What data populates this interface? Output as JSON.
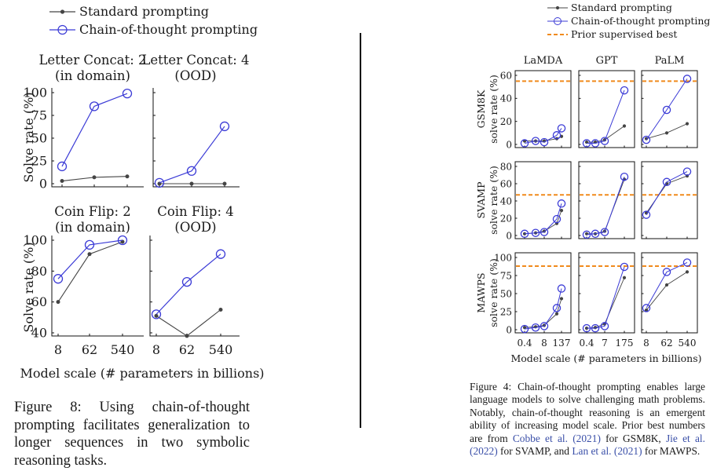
{
  "colors": {
    "standard": "#444444",
    "cot": "#3b3bd6",
    "prior": "#f08a1c"
  },
  "left_figure": {
    "legend": [
      {
        "key": "standard",
        "label": "Standard prompting"
      },
      {
        "key": "cot",
        "label": "Chain-of-thought prompting"
      }
    ],
    "ylabel": "Solve rate (%)",
    "xlabel": "Model scale (# parameters in billions)",
    "caption": {
      "label": "Figure 8:",
      "text": "Using chain-of-thought prompting facilitates generalization to longer sequences in two symbolic reasoning tasks."
    }
  },
  "right_figure": {
    "legend": [
      {
        "key": "standard",
        "label": "Standard prompting"
      },
      {
        "key": "cot",
        "label": "Chain-of-thought prompting"
      },
      {
        "key": "prior",
        "label": "Prior supervised best"
      }
    ],
    "column_titles": [
      "LaMDA",
      "GPT",
      "PaLM"
    ],
    "row_labels": [
      {
        "name": "GSM8K",
        "sub": "solve rate (%)"
      },
      {
        "name": "SVAMP",
        "sub": "solve rate (%)"
      },
      {
        "name": "MAWPS",
        "sub": "solve rate (%)"
      }
    ],
    "xlabel": "Model scale (# parameters in billions)",
    "caption": {
      "label": "Figure 4:",
      "text_1": "Chain-of-thought prompting enables large language models to solve challenging math problems. Notably, chain-of-thought reasoning is an emergent ability of increasing model scale. Prior best numbers are from ",
      "cite_1": "Cobbe et al. (2021)",
      "text_2": " for GSM8K, ",
      "cite_2": "Jie et al. (2022)",
      "text_3": " for SVAMP, and ",
      "cite_3": "Lan et al. (2021)",
      "text_4": " for MAWPS."
    }
  },
  "chart_data": [
    {
      "type": "line",
      "title": "Letter Concat: 2",
      "subtitle": "(in domain)",
      "categories": [
        "8",
        "62",
        "540"
      ],
      "ylim": [
        0,
        100
      ],
      "yticks": [
        0,
        25,
        50,
        75,
        100
      ],
      "ylabel": "Solve rate (%)",
      "xlabel": "Model scale (# parameters in billions)",
      "series": [
        {
          "name": "Standard prompting",
          "values": [
            3,
            7,
            8
          ]
        },
        {
          "name": "Chain-of-thought prompting",
          "values": [
            19,
            85,
            99
          ]
        }
      ]
    },
    {
      "type": "line",
      "title": "Letter Concat: 4",
      "subtitle": "(OOD)",
      "categories": [
        "8",
        "62",
        "540"
      ],
      "ylim": [
        0,
        100
      ],
      "yticks": [
        0,
        25,
        50,
        75,
        100
      ],
      "xlabel": "Model scale (# parameters in billions)",
      "series": [
        {
          "name": "Standard prompting",
          "values": [
            0,
            0,
            0
          ]
        },
        {
          "name": "Chain-of-thought prompting",
          "values": [
            1,
            14,
            63
          ]
        }
      ]
    },
    {
      "type": "line",
      "title": "Coin Flip: 2",
      "subtitle": "(in domain)",
      "categories": [
        "8",
        "62",
        "540"
      ],
      "ylim": [
        40,
        100
      ],
      "yticks": [
        40,
        60,
        80,
        100
      ],
      "ylabel": "Solve rate (%)",
      "xlabel": "Model scale (# parameters in billions)",
      "series": [
        {
          "name": "Standard prompting",
          "values": [
            60,
            91,
            99
          ]
        },
        {
          "name": "Chain-of-thought prompting",
          "values": [
            75,
            97,
            100
          ]
        }
      ]
    },
    {
      "type": "line",
      "title": "Coin Flip: 4",
      "subtitle": "(OOD)",
      "categories": [
        "8",
        "62",
        "540"
      ],
      "ylim": [
        40,
        100
      ],
      "yticks": [
        40,
        60,
        80,
        100
      ],
      "xlabel": "Model scale (# parameters in billions)",
      "series": [
        {
          "name": "Standard prompting",
          "values": [
            51,
            38,
            55
          ]
        },
        {
          "name": "Chain-of-thought prompting",
          "values": [
            52,
            73,
            91
          ]
        }
      ]
    },
    {
      "type": "line",
      "title": "LaMDA",
      "row": "GSM8K",
      "categories": [
        "0.4",
        "8",
        "137"
      ],
      "x": [
        0.4,
        2,
        8,
        68,
        137
      ],
      "ylim": [
        0,
        60
      ],
      "yticks": [
        0,
        20,
        40,
        60
      ],
      "prior_best": 55,
      "series": [
        {
          "name": "Standard prompting",
          "values": [
            3,
            3,
            3,
            5,
            7
          ]
        },
        {
          "name": "Chain-of-thought prompting",
          "values": [
            1,
            3,
            2,
            8,
            14
          ]
        }
      ]
    },
    {
      "type": "line",
      "title": "GPT",
      "row": "GSM8K",
      "categories": [
        "0.4",
        "7",
        "175"
      ],
      "x": [
        0.4,
        1.3,
        7,
        175
      ],
      "ylim": [
        0,
        60
      ],
      "yticks": [
        0,
        20,
        40,
        60
      ],
      "prior_best": 55,
      "series": [
        {
          "name": "Standard prompting",
          "values": [
            2,
            2,
            4,
            16
          ]
        },
        {
          "name": "Chain-of-thought prompting",
          "values": [
            1,
            1,
            3,
            47
          ]
        }
      ]
    },
    {
      "type": "line",
      "title": "PaLM",
      "row": "GSM8K",
      "categories": [
        "8",
        "62",
        "540"
      ],
      "x": [
        8,
        62,
        540
      ],
      "ylim": [
        0,
        60
      ],
      "yticks": [
        0,
        20,
        40,
        60
      ],
      "prior_best": 55,
      "series": [
        {
          "name": "Standard prompting",
          "values": [
            5,
            10,
            18
          ]
        },
        {
          "name": "Chain-of-thought prompting",
          "values": [
            4,
            30,
            57
          ]
        }
      ]
    },
    {
      "type": "line",
      "title": "LaMDA",
      "row": "SVAMP",
      "categories": [
        "0.4",
        "8",
        "137"
      ],
      "x": [
        0.4,
        2,
        8,
        68,
        137
      ],
      "ylim": [
        0,
        80
      ],
      "yticks": [
        0,
        20,
        40,
        60,
        80
      ],
      "prior_best": 47,
      "series": [
        {
          "name": "Standard prompting",
          "values": [
            2,
            3,
            5,
            14,
            29
          ]
        },
        {
          "name": "Chain-of-thought prompting",
          "values": [
            2,
            3,
            4,
            19,
            37
          ]
        }
      ]
    },
    {
      "type": "line",
      "title": "GPT",
      "row": "SVAMP",
      "categories": [
        "0.4",
        "7",
        "175"
      ],
      "x": [
        0.4,
        1.3,
        7,
        175
      ],
      "ylim": [
        0,
        80
      ],
      "yticks": [
        0,
        20,
        40,
        60,
        80
      ],
      "prior_best": 47,
      "series": [
        {
          "name": "Standard prompting",
          "values": [
            2,
            2,
            5,
            65
          ]
        },
        {
          "name": "Chain-of-thought prompting",
          "values": [
            1,
            2,
            4,
            68
          ]
        }
      ]
    },
    {
      "type": "line",
      "title": "PaLM",
      "row": "SVAMP",
      "categories": [
        "8",
        "62",
        "540"
      ],
      "x": [
        8,
        62,
        540
      ],
      "ylim": [
        0,
        80
      ],
      "yticks": [
        0,
        20,
        40,
        60,
        80
      ],
      "prior_best": 47,
      "series": [
        {
          "name": "Standard prompting",
          "values": [
            26,
            60,
            69
          ]
        },
        {
          "name": "Chain-of-thought prompting",
          "values": [
            24,
            62,
            74
          ]
        }
      ]
    },
    {
      "type": "line",
      "title": "LaMDA",
      "row": "MAWPS",
      "categories": [
        "0.4",
        "8",
        "137"
      ],
      "x": [
        0.4,
        2,
        8,
        68,
        137
      ],
      "ylim": [
        0,
        100
      ],
      "yticks": [
        0,
        25,
        50,
        75,
        100
      ],
      "prior_best": 88,
      "series": [
        {
          "name": "Standard prompting",
          "values": [
            3,
            4,
            6,
            22,
            43
          ]
        },
        {
          "name": "Chain-of-thought prompting",
          "values": [
            1,
            3,
            5,
            30,
            57
          ]
        }
      ]
    },
    {
      "type": "line",
      "title": "GPT",
      "row": "MAWPS",
      "categories": [
        "0.4",
        "7",
        "175"
      ],
      "x": [
        0.4,
        1.3,
        7,
        175
      ],
      "ylim": [
        0,
        100
      ],
      "yticks": [
        0,
        25,
        50,
        75,
        100
      ],
      "prior_best": 88,
      "series": [
        {
          "name": "Standard prompting",
          "values": [
            2,
            3,
            8,
            72
          ]
        },
        {
          "name": "Chain-of-thought prompting",
          "values": [
            2,
            2,
            5,
            87
          ]
        }
      ]
    },
    {
      "type": "line",
      "title": "PaLM",
      "row": "MAWPS",
      "categories": [
        "8",
        "62",
        "540"
      ],
      "x": [
        8,
        62,
        540
      ],
      "ylim": [
        0,
        100
      ],
      "yticks": [
        0,
        25,
        50,
        75,
        100
      ],
      "prior_best": 88,
      "series": [
        {
          "name": "Standard prompting",
          "values": [
            27,
            62,
            80
          ]
        },
        {
          "name": "Chain-of-thought prompting",
          "values": [
            30,
            80,
            93
          ]
        }
      ]
    }
  ]
}
